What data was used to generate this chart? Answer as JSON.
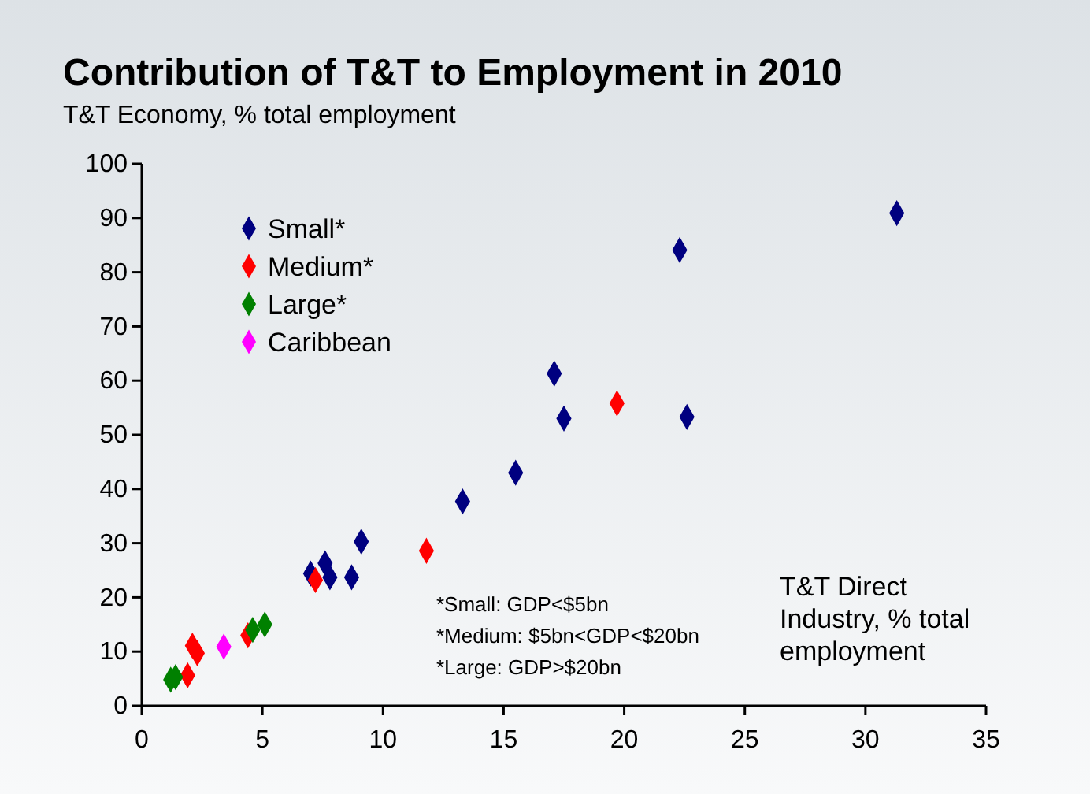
{
  "chart_data": {
    "type": "scatter",
    "title": "Contribution of T&T to Employment in 2010",
    "ylabel": "T&T Economy, % total employment",
    "xlabel": "T&T Direct Industry, % total employment",
    "xlim": [
      0,
      35
    ],
    "xticks": [
      0,
      5,
      10,
      15,
      20,
      25,
      30,
      35
    ],
    "ylim": [
      0,
      100
    ],
    "yticks": [
      0,
      10,
      20,
      30,
      40,
      50,
      60,
      70,
      80,
      90,
      100
    ],
    "marker": "diamond",
    "legend": "top left",
    "grid": false,
    "series": [
      {
        "name": "Small*",
        "color": "#000080",
        "x": [
          7.0,
          7.6,
          7.8,
          8.7,
          9.1,
          13.3,
          15.5,
          17.1,
          17.5,
          22.3,
          22.6,
          31.3
        ],
        "values": [
          24.4,
          26.3,
          23.7,
          23.7,
          30.3,
          37.7,
          43.0,
          61.3,
          53.0,
          84.1,
          53.3,
          90.9
        ]
      },
      {
        "name": "Medium*",
        "color": "#ff0000",
        "x": [
          7.2,
          1.9,
          2.1,
          2.3,
          4.4,
          11.8,
          19.7
        ],
        "values": [
          23.2,
          5.6,
          11.1,
          9.7,
          13.0,
          28.6,
          55.8
        ]
      },
      {
        "name": "Large*",
        "color": "#008000",
        "x": [
          1.2,
          1.4,
          4.6,
          5.1
        ],
        "values": [
          4.8,
          5.3,
          14.0,
          15.0
        ]
      },
      {
        "name": "Caribbean",
        "color": "#ff00ff",
        "x": [
          3.4
        ],
        "values": [
          10.9
        ]
      }
    ],
    "annotations": [
      "*Small: GDP<$5bn",
      "*Medium: $5bn<GDP<$20bn",
      "*Large: GDP>$20bn"
    ]
  }
}
